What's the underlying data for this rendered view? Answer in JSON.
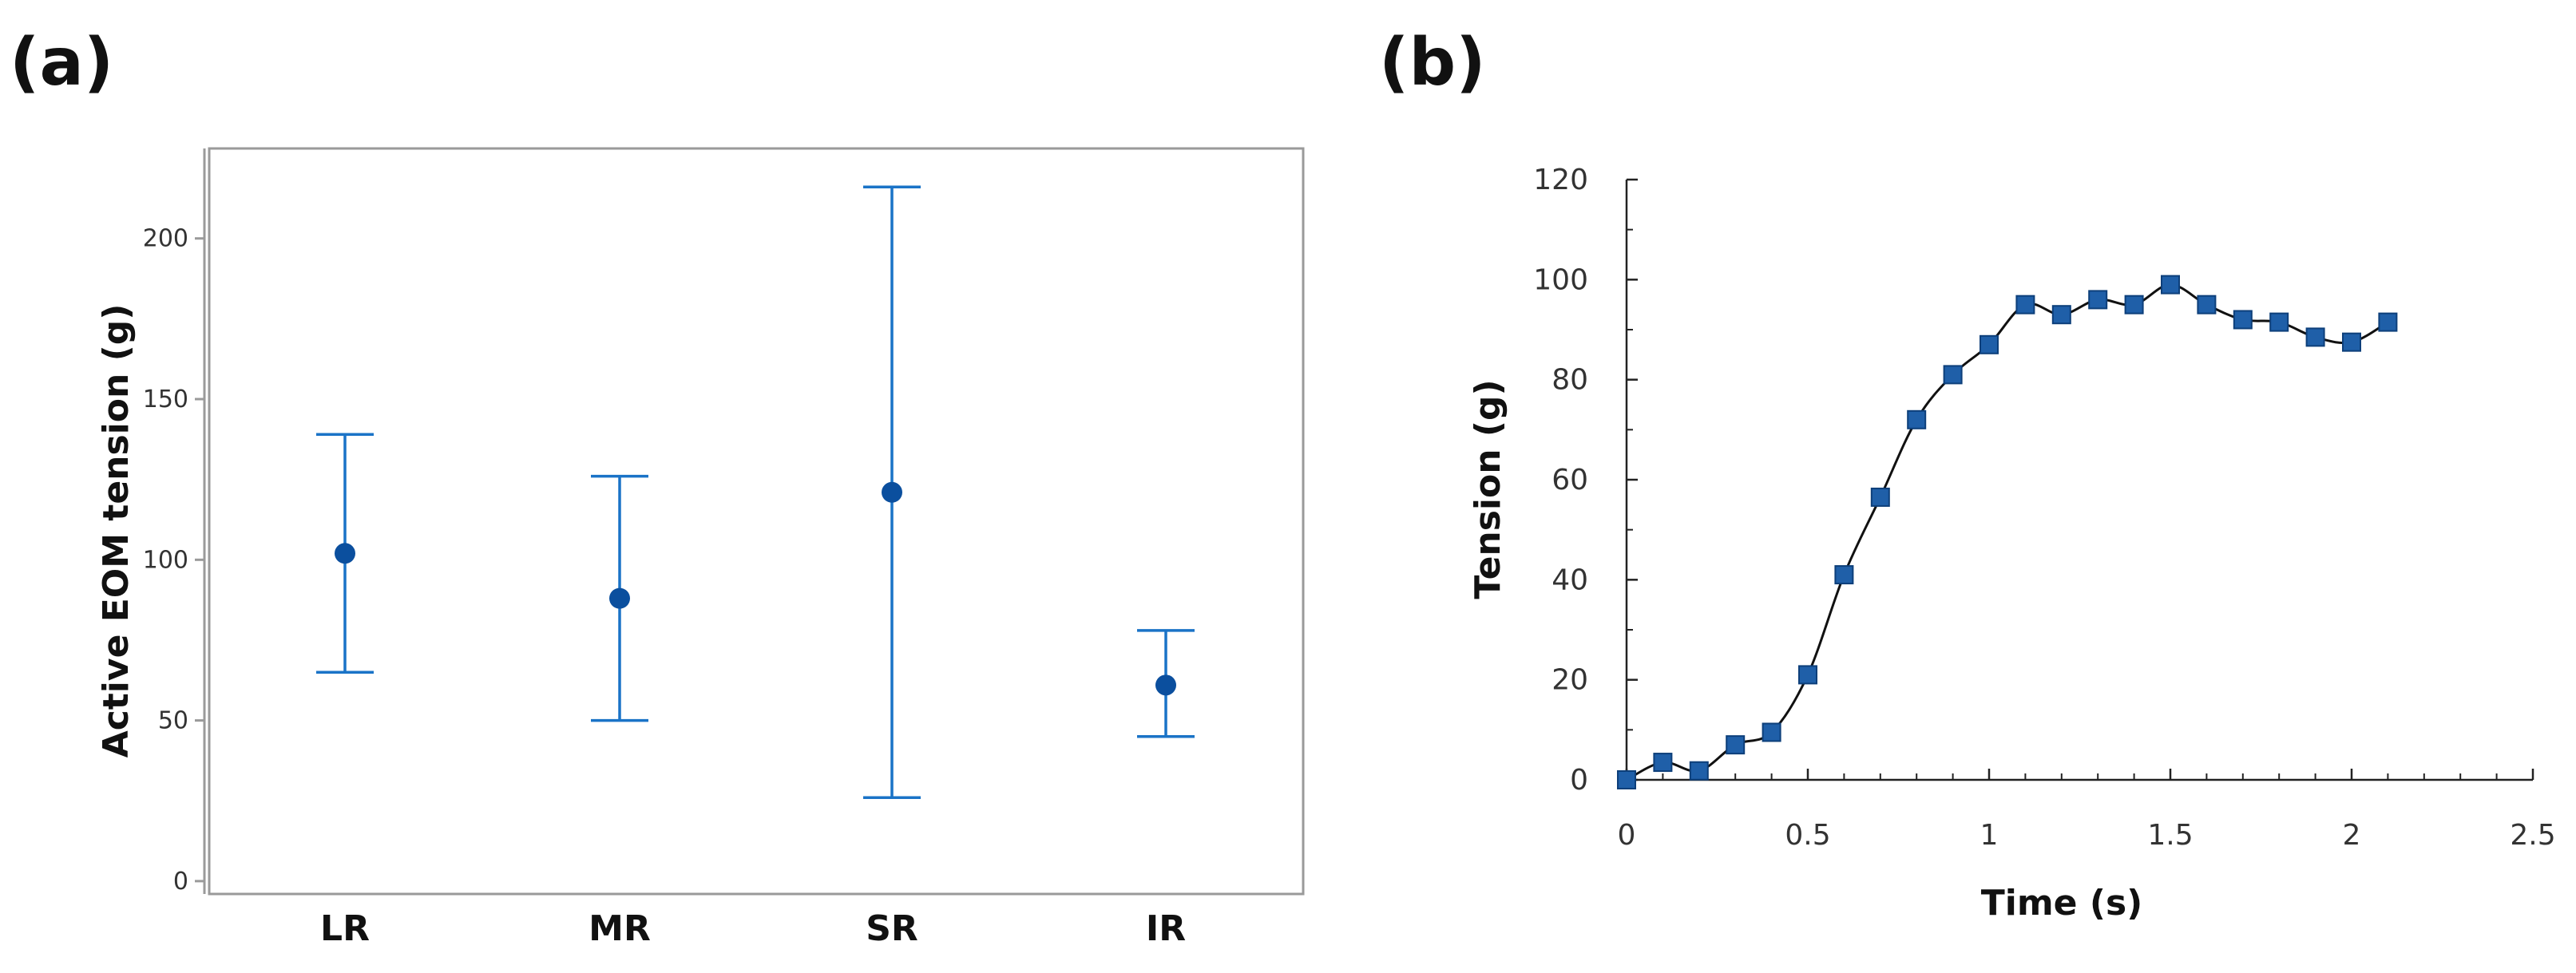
{
  "panels": {
    "a": {
      "label": "(a)"
    },
    "b": {
      "label": "(b)"
    }
  },
  "chart_data": [
    {
      "type": "errorbar",
      "panel": "(a)",
      "title": "",
      "xlabel": "",
      "ylabel": "Active EOM tension (g)",
      "categories": [
        "LR",
        "MR",
        "SR",
        "IR"
      ],
      "means": [
        102,
        88,
        121,
        61
      ],
      "lower": [
        65,
        50,
        26,
        45
      ],
      "upper": [
        139,
        126,
        216,
        78
      ],
      "ylim": [
        -4,
        228
      ],
      "yticks": [
        0,
        50,
        100,
        150,
        200
      ],
      "color": "#1a73c7",
      "marker_color": "#0b4f9e",
      "grid": false
    },
    {
      "type": "line",
      "panel": "(b)",
      "title": "",
      "xlabel": "Time (s)",
      "ylabel": "Tension (g)",
      "x": [
        0,
        0.1,
        0.2,
        0.3,
        0.4,
        0.5,
        0.6,
        0.7,
        0.8,
        0.9,
        1.0,
        1.1,
        1.2,
        1.3,
        1.4,
        1.5,
        1.6,
        1.7,
        1.8,
        1.9,
        2.0,
        2.1
      ],
      "y": [
        0,
        3.5,
        1.8,
        7,
        9.5,
        21,
        41,
        56.5,
        72,
        81,
        87,
        95,
        93,
        96,
        95,
        99,
        95,
        92,
        91.5,
        88.5,
        87.5,
        91.5
      ],
      "xlim": [
        0,
        2.5
      ],
      "ylim": [
        0,
        120
      ],
      "xticks": [
        0,
        0.5,
        1,
        1.5,
        2,
        2.5
      ],
      "xtick_labels": [
        "0",
        "0.5",
        "1",
        "1.5",
        "2",
        "2.5"
      ],
      "yticks": [
        0,
        20,
        40,
        60,
        80,
        100,
        120
      ],
      "ytick_labels": [
        "0",
        "20",
        "40",
        "60",
        "80",
        "100",
        "120"
      ],
      "marker": "square",
      "marker_color": "#1f5fa8",
      "line_color": "#111111",
      "grid": false
    }
  ]
}
